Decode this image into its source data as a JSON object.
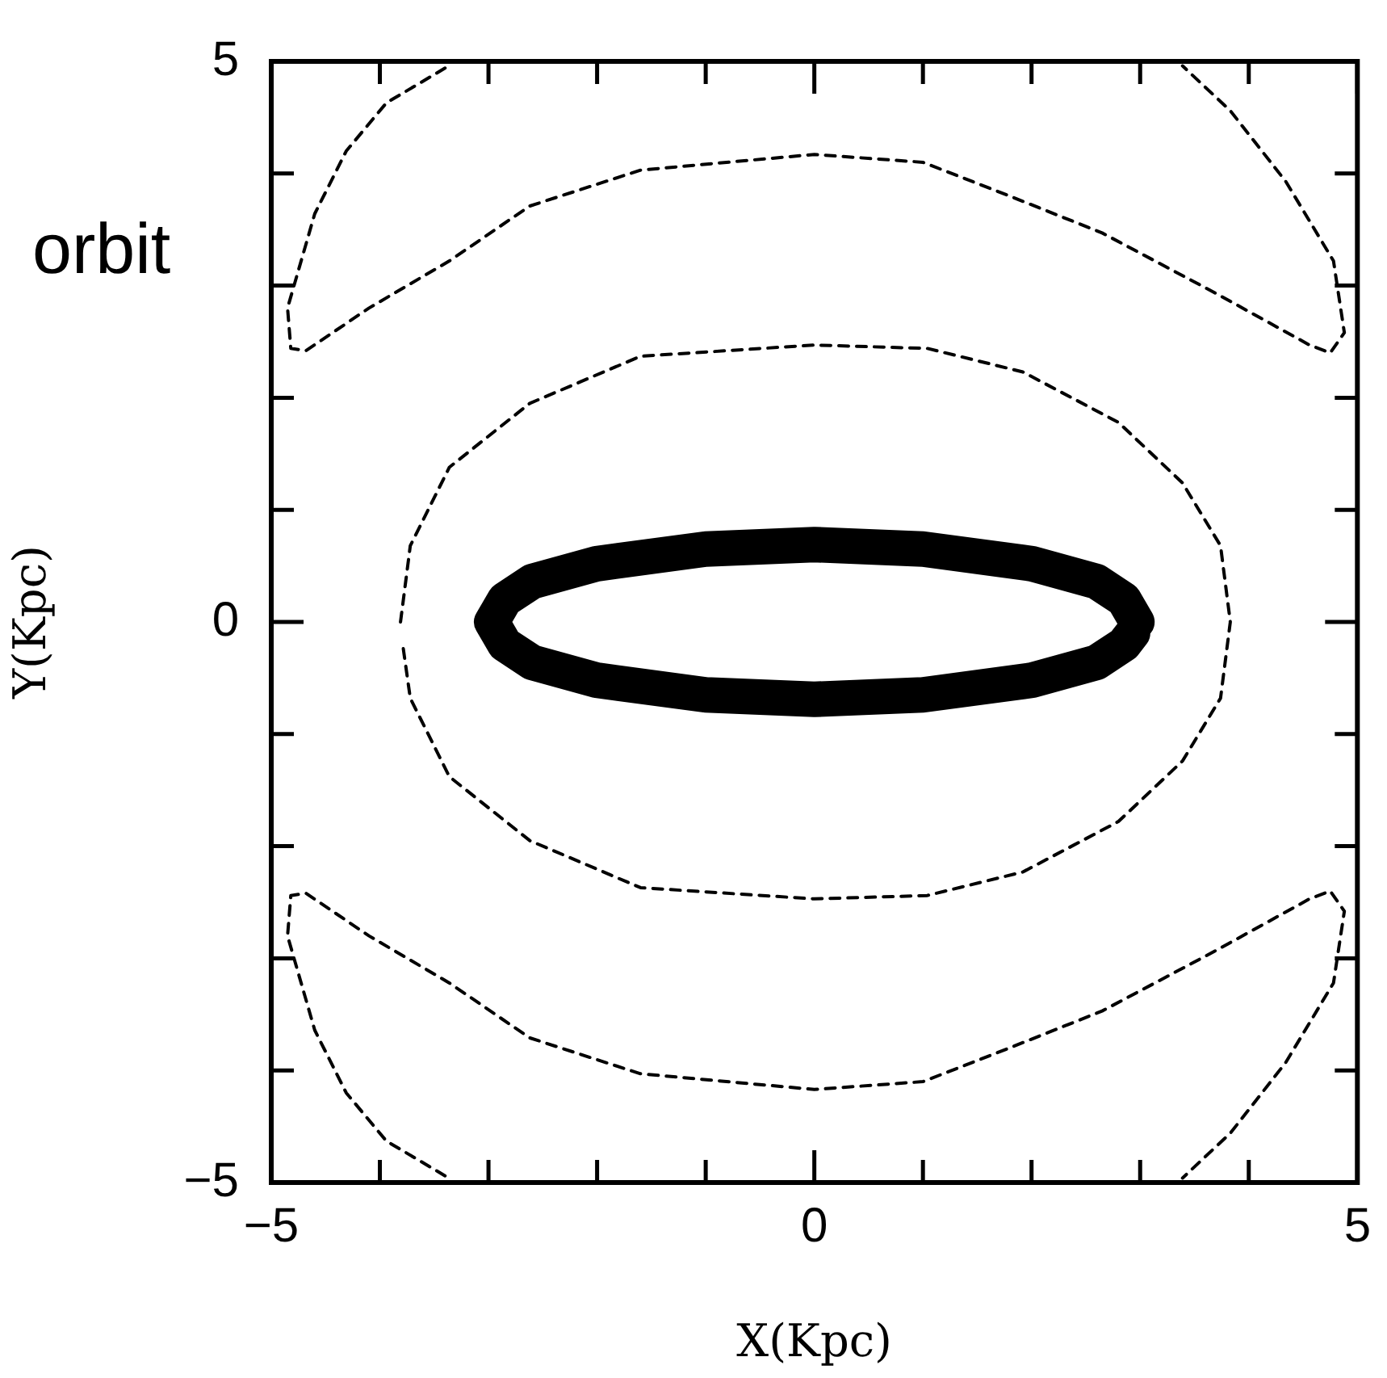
{
  "chart_data": {
    "type": "line",
    "xlabel": "X(Kpc)",
    "ylabel": "Y(Kpc)",
    "annotations": [
      "orbit"
    ],
    "xlim": [
      -5,
      5
    ],
    "ylim": [
      -5,
      5
    ],
    "xticks": [
      {
        "value": -5,
        "label": "−5"
      },
      {
        "value": -4,
        "label": null
      },
      {
        "value": -3,
        "label": null
      },
      {
        "value": -2,
        "label": null
      },
      {
        "value": -1,
        "label": null
      },
      {
        "value": 0,
        "label": "0"
      },
      {
        "value": 1,
        "label": null
      },
      {
        "value": 2,
        "label": null
      },
      {
        "value": 3,
        "label": null
      },
      {
        "value": 4,
        "label": null
      },
      {
        "value": 5,
        "label": "5"
      }
    ],
    "yticks": [
      {
        "value": -5,
        "label": "−5"
      },
      {
        "value": -4,
        "label": null
      },
      {
        "value": -3,
        "label": null
      },
      {
        "value": -2,
        "label": null
      },
      {
        "value": -1,
        "label": null
      },
      {
        "value": 0,
        "label": "0"
      },
      {
        "value": 1,
        "label": null
      },
      {
        "value": 2,
        "label": null
      },
      {
        "value": 3,
        "label": null
      },
      {
        "value": 4,
        "label": null
      },
      {
        "value": 5,
        "label": "5"
      }
    ],
    "marker": "none",
    "grid": false,
    "legend": false,
    "series": [
      {
        "color": "#000000",
        "line_style": "solid",
        "x": [
          2.97,
          2.85,
          2.6,
          2,
          1,
          0,
          -1,
          -2,
          -2.6,
          -2.85,
          -2.97,
          -2.85,
          -2.6,
          -2,
          -1,
          0,
          1,
          2,
          2.6,
          2.85,
          2.93
        ],
        "values": [
          0,
          0.2,
          0.36,
          0.52,
          0.65,
          0.69,
          0.65,
          0.52,
          0.36,
          0.2,
          0,
          -0.2,
          -0.36,
          -0.52,
          -0.65,
          -0.69,
          -0.65,
          -0.52,
          -0.36,
          -0.2,
          -0.1
        ]
      },
      {
        "color": "#000000",
        "line_style": "dashed",
        "x": [
          -3.81,
          -3.72,
          -3.36,
          -2.62,
          -1.6,
          0,
          1.04,
          1.92,
          2.8,
          3.39,
          3.74,
          3.83,
          3.74,
          3.39,
          2.8,
          1.92,
          1.04,
          0,
          -1.6,
          -2.62,
          -3.36,
          -3.72,
          -3.79
        ],
        "values": [
          0,
          0.68,
          1.38,
          1.95,
          2.37,
          2.47,
          2.44,
          2.23,
          1.78,
          1.24,
          0.68,
          0,
          -0.68,
          -1.24,
          -1.78,
          -2.23,
          -2.44,
          -2.47,
          -2.37,
          -1.95,
          -1.38,
          -0.68,
          -0.2
        ]
      },
      {
        "color": "#000000",
        "line_style": "dashed",
        "x": [
          -3.4,
          -3.94,
          -4.31,
          -4.6,
          -4.85,
          -4.82,
          -4.68,
          -4.1,
          -3.36,
          -2.62,
          -1.6,
          0,
          1,
          1.77,
          2.65,
          3.68,
          4.56,
          4.75,
          4.88,
          4.78,
          4.34,
          3.83,
          3.39
        ],
        "values": [
          4.94,
          4.63,
          4.2,
          3.64,
          2.8,
          2.44,
          2.42,
          2.8,
          3.22,
          3.71,
          4.03,
          4.17,
          4.1,
          3.81,
          3.47,
          2.94,
          2.47,
          2.4,
          2.58,
          3.22,
          3.93,
          4.56,
          4.96
        ]
      },
      {
        "color": "#000000",
        "line_style": "dashed",
        "x": [
          -3.4,
          -3.94,
          -4.31,
          -4.6,
          -4.85,
          -4.82,
          -4.68,
          -4.1,
          -3.36,
          -2.62,
          -1.6,
          0,
          1,
          1.77,
          2.65,
          3.68,
          4.56,
          4.75,
          4.88,
          4.78,
          4.34,
          3.83,
          3.39
        ],
        "values": [
          -4.94,
          -4.63,
          -4.2,
          -3.64,
          -2.8,
          -2.44,
          -2.42,
          -2.8,
          -3.22,
          -3.71,
          -4.03,
          -4.17,
          -4.1,
          -3.81,
          -3.47,
          -2.94,
          -2.47,
          -2.4,
          -2.58,
          -3.22,
          -3.93,
          -4.56,
          -4.96
        ]
      }
    ]
  }
}
